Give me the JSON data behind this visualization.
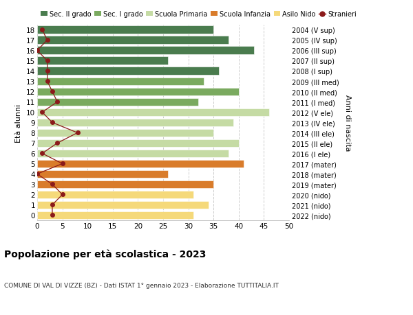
{
  "ages": [
    18,
    17,
    16,
    15,
    14,
    13,
    12,
    11,
    10,
    9,
    8,
    7,
    6,
    5,
    4,
    3,
    2,
    1,
    0
  ],
  "right_labels": [
    "2004 (V sup)",
    "2005 (IV sup)",
    "2006 (III sup)",
    "2007 (II sup)",
    "2008 (I sup)",
    "2009 (III med)",
    "2010 (II med)",
    "2011 (I med)",
    "2012 (V ele)",
    "2013 (IV ele)",
    "2014 (III ele)",
    "2015 (II ele)",
    "2016 (I ele)",
    "2017 (mater)",
    "2018 (mater)",
    "2019 (mater)",
    "2020 (nido)",
    "2021 (nido)",
    "2022 (nido)"
  ],
  "bar_values": [
    35,
    38,
    43,
    26,
    36,
    33,
    40,
    32,
    46,
    39,
    35,
    40,
    38,
    41,
    26,
    35,
    31,
    34,
    31
  ],
  "bar_colors": [
    "#4a7c4e",
    "#4a7c4e",
    "#4a7c4e",
    "#4a7c4e",
    "#4a7c4e",
    "#7aaa5f",
    "#7aaa5f",
    "#7aaa5f",
    "#c5dba4",
    "#c5dba4",
    "#c5dba4",
    "#c5dba4",
    "#c5dba4",
    "#d97c2b",
    "#d97c2b",
    "#d97c2b",
    "#f5d97a",
    "#f5d97a",
    "#f5d97a"
  ],
  "stranieri_values": [
    1,
    2,
    0,
    2,
    2,
    2,
    3,
    4,
    1,
    3,
    8,
    4,
    1,
    5,
    0,
    3,
    5,
    3,
    3
  ],
  "stranieri_color": "#8b1a1a",
  "title": "Popolazione per età scolastica - 2023",
  "subtitle": "COMUNE DI VAL DI VIZZE (BZ) - Dati ISTAT 1° gennaio 2023 - Elaborazione TUTTITALIA.IT",
  "ylabel_left": "Età alunni",
  "ylabel_right": "Anni di nascita",
  "xlim": [
    0,
    50
  ],
  "xticks": [
    0,
    5,
    10,
    15,
    20,
    25,
    30,
    35,
    40,
    45,
    50
  ],
  "legend_labels": [
    "Sec. II grado",
    "Sec. I grado",
    "Scuola Primaria",
    "Scuola Infanzia",
    "Asilo Nido",
    "Stranieri"
  ],
  "legend_colors": [
    "#4a7c4e",
    "#7aaa5f",
    "#c5dba4",
    "#d97c2b",
    "#f5d97a",
    "#8b1a1a"
  ],
  "bar_height": 0.78
}
